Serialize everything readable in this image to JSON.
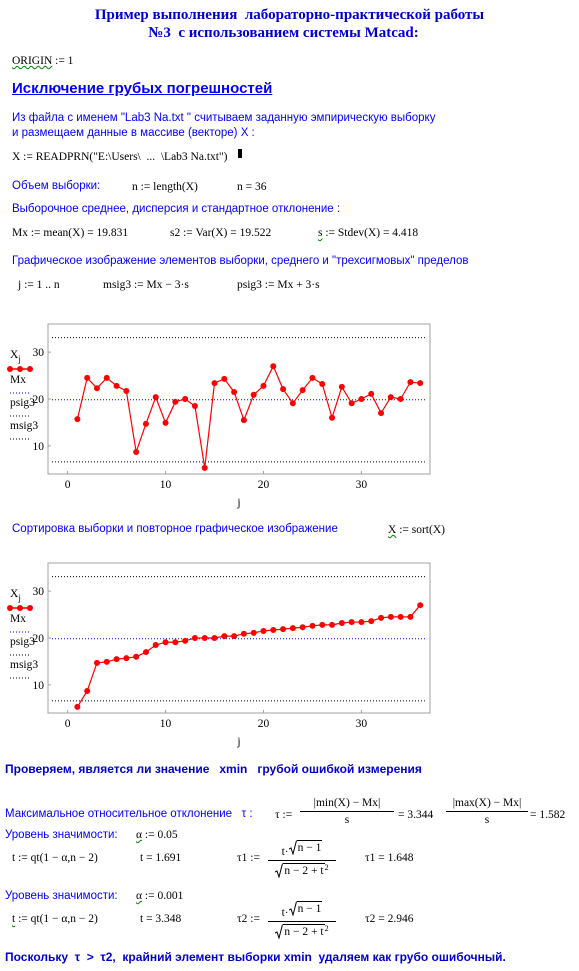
{
  "header": {
    "title_line1": "Пример выполнения  лабораторно-практической работы",
    "title_line2": "№3  с использованием системы Matcad:"
  },
  "origin": {
    "name": "ORIGIN",
    "rest": " := 1"
  },
  "section_title": "Исключение грубых погрешностей",
  "intro": [
    "Из файла с именем \"Lab3 Na.txt \" считываем заданную эмпирическую выборку",
    "и размещаем данные в массиве (векторе) X :"
  ],
  "read": "X := READPRN(\"E:\\Users\\  ...  \\Lab3 Na.txt\")",
  "size": {
    "label": "Объем выборки:",
    "def": "n := length(X)",
    "val": "n = 36"
  },
  "stats": {
    "label": "Выборочное среднее, дисперсия и стандартное отклонение :",
    "mean": "Mx := mean(X) = 19.831",
    "var": "s2 := Var(X) = 19.522",
    "sd_name": "s",
    "sd_rest": " := Stdev(X) = 4.418"
  },
  "plot_label": "Графическое изображение элементов выборки, среднего и \"трехсигмовых\" пределов",
  "defs": [
    "j := 1 .. n",
    "msig3 := Mx − 3·s",
    "psig3 := Mx + 3·s"
  ],
  "sort": {
    "label": "Сортировка выборки и повторное графическое изображение",
    "name": "X",
    "rest": " := sort(X)"
  },
  "check": "Проверяем, является ли значение   xmin   грубой ошибкой измерения",
  "tau": {
    "label": "Максимальное относительное отклонение   τ :",
    "def": "τ :=",
    "num1": "|min(X) − Mx|",
    "den1": "s",
    "val1": "= 3.344",
    "num2": "|max(X) − Mx|",
    "den2": "s",
    "val2": "= 1.582"
  },
  "levels": [
    {
      "label": "Уровень значимости:",
      "alpha_name": "α",
      "alpha_rest": " := 0.05",
      "t_name": "t",
      "t_rest": " := qt(1 − α,n − 2)",
      "t_val": "t = 1.691",
      "tau_name": "τ1 :=",
      "num_pre": "t·",
      "num_rad": "n − 1",
      "den_rad": "n − 2 + t",
      "den_sup": "2",
      "tau_val": "τ1 = 1.648"
    },
    {
      "label": "Уровень значимости:",
      "alpha_name": "α",
      "alpha_rest": " := 0.001",
      "t_name": "t",
      "t_rest": " := qt(1 − α,n − 2)",
      "t_val": "t = 3.348",
      "tau_name": "τ2 :=",
      "num_pre": "t·",
      "num_rad": "n − 1",
      "den_rad": "n − 2 + t",
      "den_sup": "2",
      "tau_val": "τ2 = 2.946"
    }
  ],
  "conclusion": "Поскольку  τ  >  τ2,  крайний элемент выборки xmin  удаляем как грубо ошибочный.",
  "chart_data": [
    {
      "type": "line",
      "xlabel": "j",
      "x": [
        1,
        2,
        3,
        4,
        5,
        6,
        7,
        8,
        9,
        10,
        11,
        12,
        13,
        14,
        15,
        16,
        17,
        18,
        19,
        20,
        21,
        22,
        23,
        24,
        25,
        26,
        27,
        28,
        29,
        30,
        31,
        32,
        33,
        34,
        35,
        36
      ],
      "series": [
        {
          "name": "X",
          "subscript": "j",
          "color": "#ff0000",
          "values": [
            15.7,
            24.5,
            22.3,
            24.5,
            22.8,
            21.7,
            8.7,
            14.7,
            20.4,
            14.9,
            19.4,
            20.0,
            18.5,
            5.3,
            23.4,
            24.3,
            21.5,
            15.5,
            20.9,
            22.8,
            27.0,
            22.1,
            19.1,
            21.9,
            24.5,
            23.2,
            16.0,
            22.6,
            19.1,
            20.0,
            21.1,
            17.0,
            20.4,
            20.0,
            23.6,
            23.4
          ]
        }
      ],
      "hlines": [
        {
          "name": "Mx",
          "value": 19.831,
          "color": "#0000ff"
        },
        {
          "name": "psig3",
          "value": 33.085,
          "color": "#000000"
        },
        {
          "name": "msig3",
          "value": 6.577,
          "color": "#000000"
        }
      ],
      "xlim": [
        -2,
        37
      ],
      "ylim": [
        4,
        36
      ],
      "xticks": [
        0,
        10,
        20,
        30
      ],
      "yticks": [
        10,
        20,
        30
      ],
      "legend": "left",
      "grid": false
    },
    {
      "type": "line",
      "xlabel": "j",
      "x": [
        1,
        2,
        3,
        4,
        5,
        6,
        7,
        8,
        9,
        10,
        11,
        12,
        13,
        14,
        15,
        16,
        17,
        18,
        19,
        20,
        21,
        22,
        23,
        24,
        25,
        26,
        27,
        28,
        29,
        30,
        31,
        32,
        33,
        34,
        35,
        36
      ],
      "series": [
        {
          "name": "X",
          "subscript": "j",
          "color": "#ff0000",
          "values": [
            5.3,
            8.7,
            14.7,
            14.9,
            15.5,
            15.7,
            16.0,
            17.0,
            18.5,
            19.1,
            19.1,
            19.4,
            20.0,
            20.0,
            20.0,
            20.4,
            20.4,
            20.9,
            21.1,
            21.5,
            21.7,
            21.9,
            22.1,
            22.3,
            22.6,
            22.8,
            22.8,
            23.2,
            23.4,
            23.4,
            23.6,
            24.3,
            24.5,
            24.5,
            24.5,
            27.0
          ]
        }
      ],
      "hlines": [
        {
          "name": "Mx",
          "value": 19.831,
          "color": "#0000ff"
        },
        {
          "name": "psig3",
          "value": 33.085,
          "color": "#000000"
        },
        {
          "name": "msig3",
          "value": 6.577,
          "color": "#000000"
        }
      ],
      "xlim": [
        -2,
        37
      ],
      "ylim": [
        4,
        36
      ],
      "xticks": [
        0,
        10,
        20,
        30
      ],
      "yticks": [
        10,
        20,
        30
      ],
      "legend": "left",
      "grid": false
    }
  ]
}
